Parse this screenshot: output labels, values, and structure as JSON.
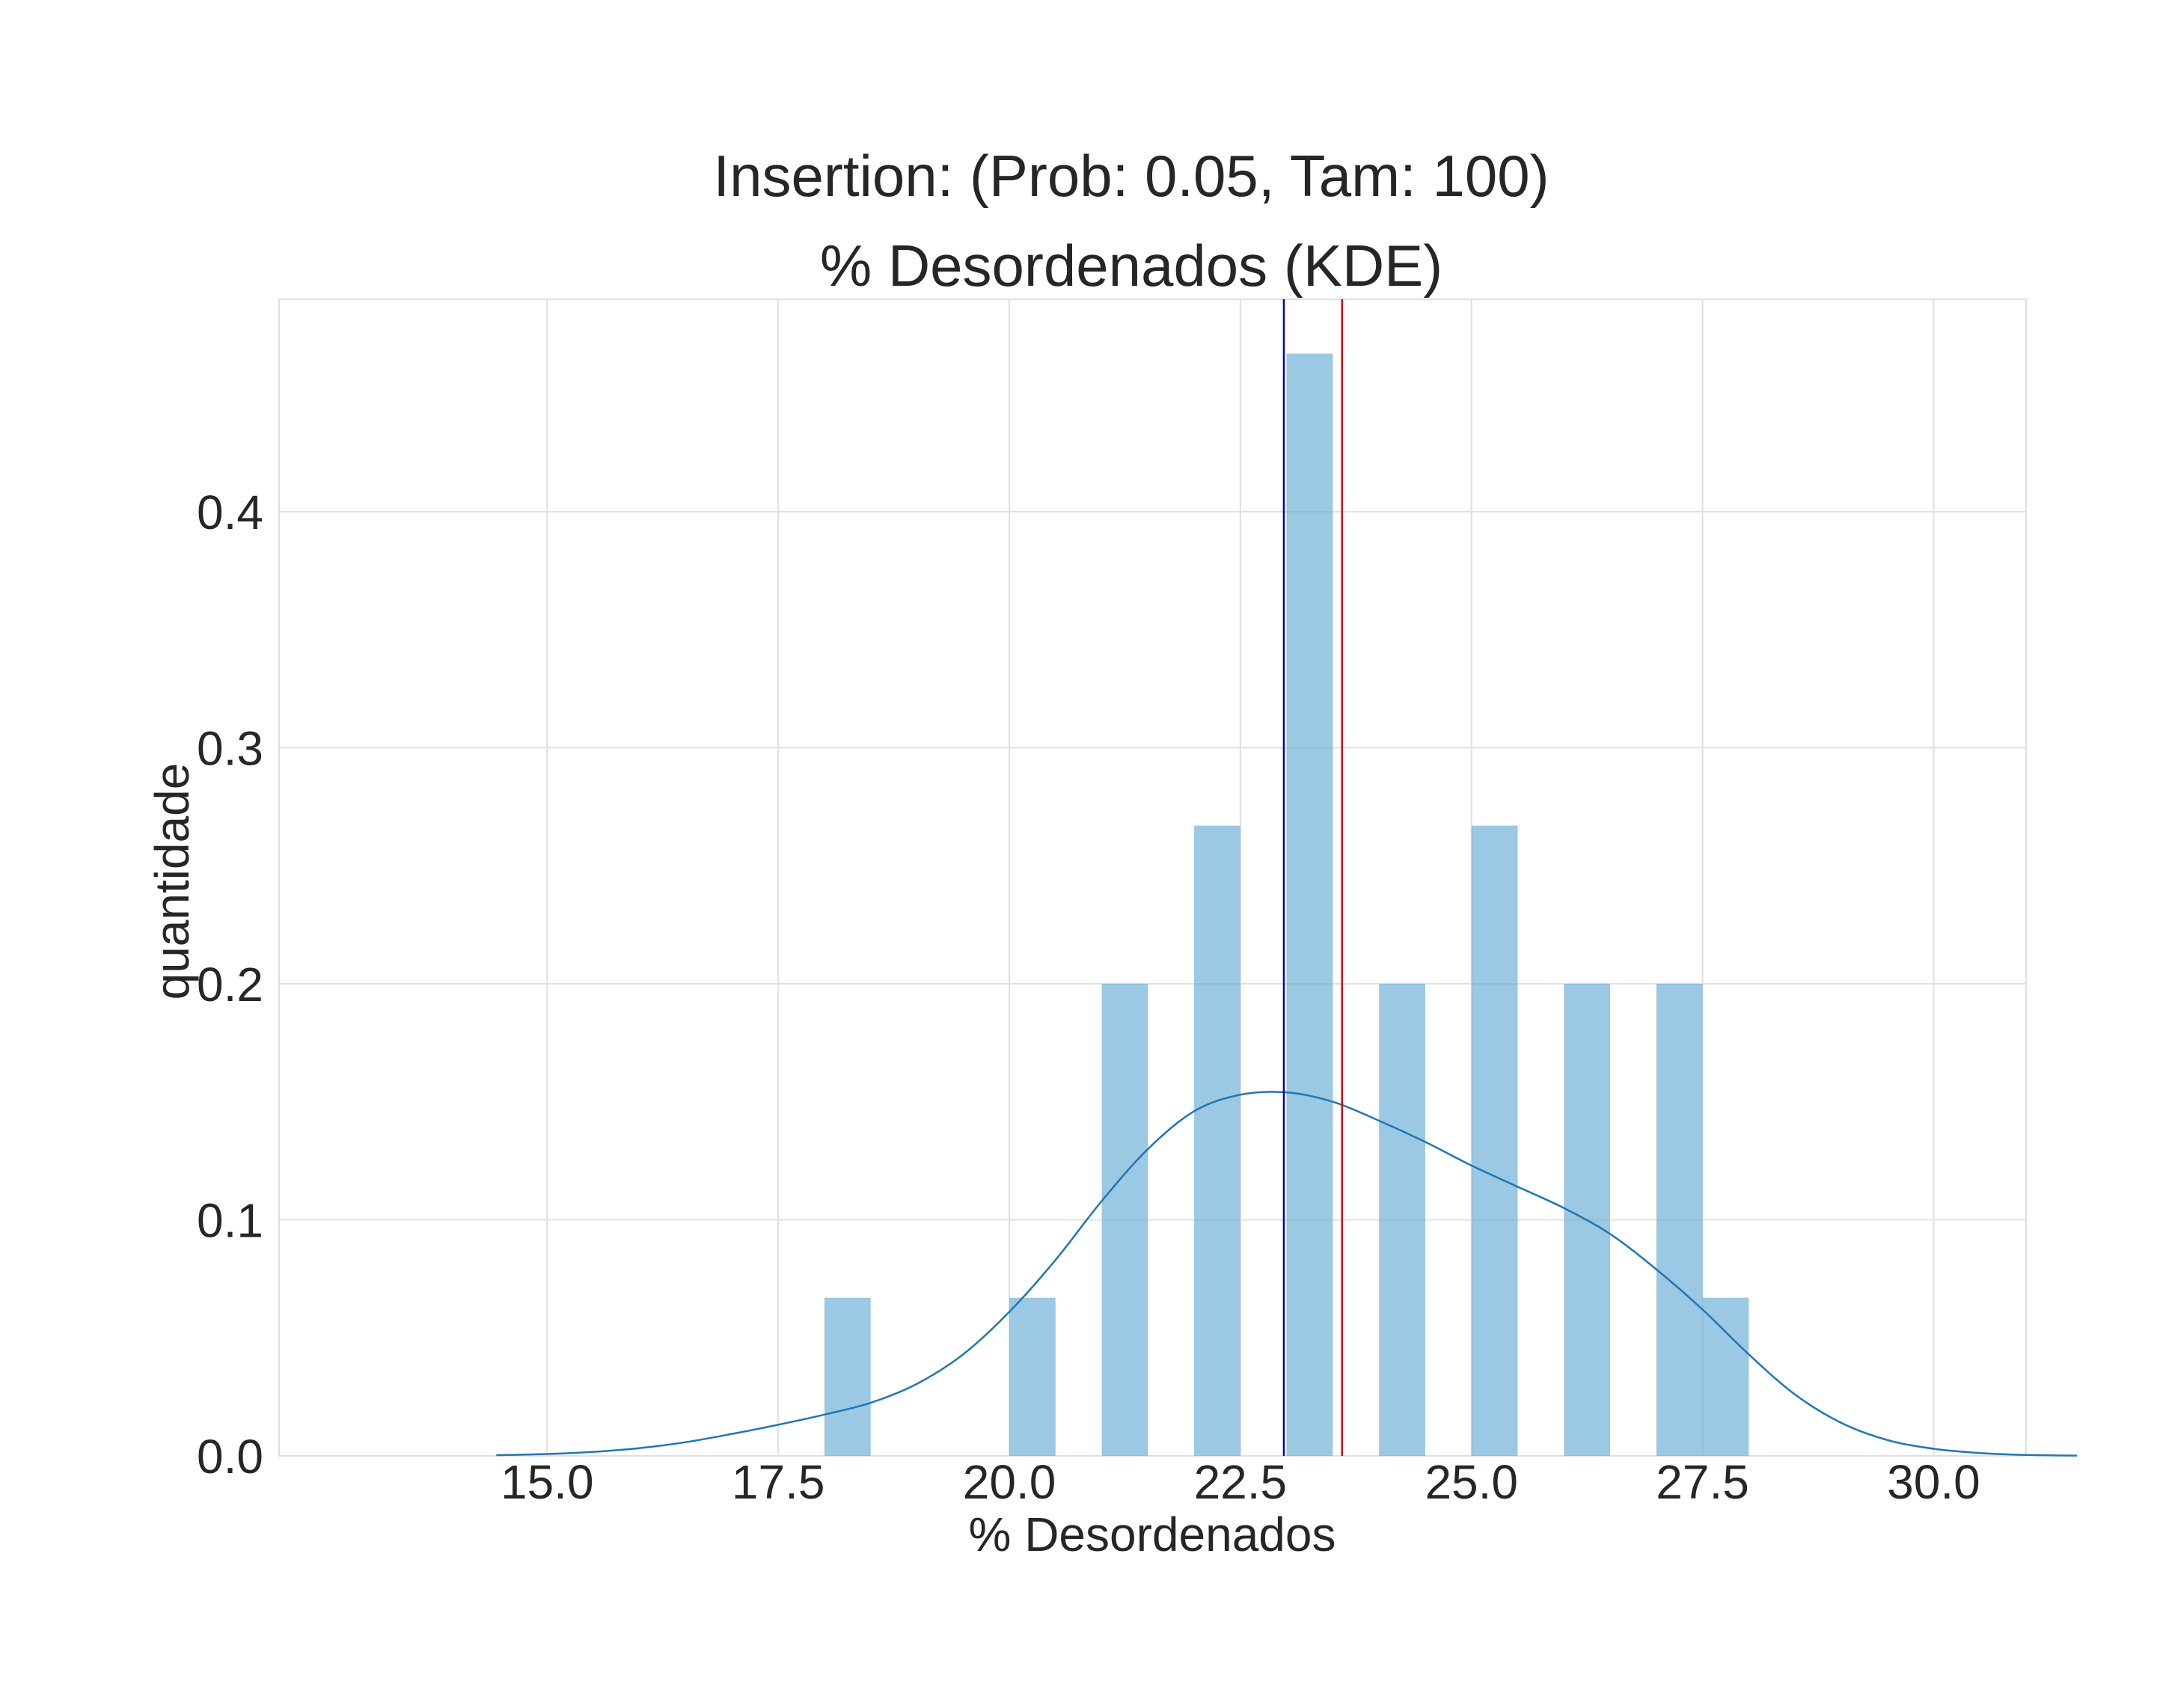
{
  "chart_data": {
    "type": "bar",
    "title_line1": "Insertion: (Prob: 0.05, Tam: 100)",
    "title_line2": "% Desordenados (KDE)",
    "xlabel": "% Desordenados",
    "ylabel": "quantidade",
    "xlim": [
      12.1,
      31.0
    ],
    "ylim": [
      0.0,
      0.49
    ],
    "x_ticks": [
      15.0,
      17.5,
      20.0,
      22.5,
      25.0,
      27.5,
      30.0
    ],
    "x_tick_labels": [
      "15.0",
      "17.5",
      "20.0",
      "22.5",
      "25.0",
      "27.5",
      "30.0"
    ],
    "y_ticks": [
      0.0,
      0.1,
      0.2,
      0.3,
      0.4
    ],
    "y_tick_labels": [
      "0.0",
      "0.1",
      "0.2",
      "0.3",
      "0.4"
    ],
    "grid": true,
    "bar_color": "#6baed6",
    "kde_color": "#1f77b4",
    "histogram": {
      "bins": [
        {
          "x0": 18.0,
          "x1": 18.5,
          "value": 0.067
        },
        {
          "x0": 20.0,
          "x1": 20.5,
          "value": 0.067
        },
        {
          "x0": 21.0,
          "x1": 21.5,
          "value": 0.2
        },
        {
          "x0": 22.0,
          "x1": 22.5,
          "value": 0.267
        },
        {
          "x0": 23.0,
          "x1": 23.5,
          "value": 0.467
        },
        {
          "x0": 24.0,
          "x1": 24.5,
          "value": 0.2
        },
        {
          "x0": 25.0,
          "x1": 25.5,
          "value": 0.267
        },
        {
          "x0": 26.0,
          "x1": 26.5,
          "value": 0.2
        },
        {
          "x0": 27.0,
          "x1": 27.5,
          "value": 0.2
        },
        {
          "x0": 27.5,
          "x1": 28.0,
          "value": 0.067
        }
      ]
    },
    "kde": {
      "x": [
        14.45,
        15.0,
        15.5,
        16.0,
        16.5,
        17.0,
        17.5,
        18.0,
        18.5,
        19.0,
        19.5,
        20.0,
        20.5,
        21.0,
        21.5,
        22.0,
        22.5,
        23.0,
        23.5,
        24.0,
        24.5,
        25.0,
        25.5,
        26.0,
        26.5,
        27.0,
        27.5,
        28.0,
        28.5,
        29.0,
        29.5,
        30.0,
        30.5,
        31.0,
        31.55
      ],
      "y": [
        0.0003,
        0.0008,
        0.0017,
        0.0033,
        0.0058,
        0.0093,
        0.0132,
        0.0175,
        0.0225,
        0.0305,
        0.043,
        0.061,
        0.083,
        0.108,
        0.13,
        0.146,
        0.153,
        0.154,
        0.15,
        0.142,
        0.133,
        0.123,
        0.114,
        0.105,
        0.094,
        0.079,
        0.062,
        0.043,
        0.026,
        0.014,
        0.0067,
        0.003,
        0.0012,
        0.0004,
        0.0001
      ]
    },
    "vertical_lines": [
      {
        "x": 22.97,
        "color": "#0000cc"
      },
      {
        "x": 23.6,
        "color": "#dd0000"
      }
    ]
  }
}
